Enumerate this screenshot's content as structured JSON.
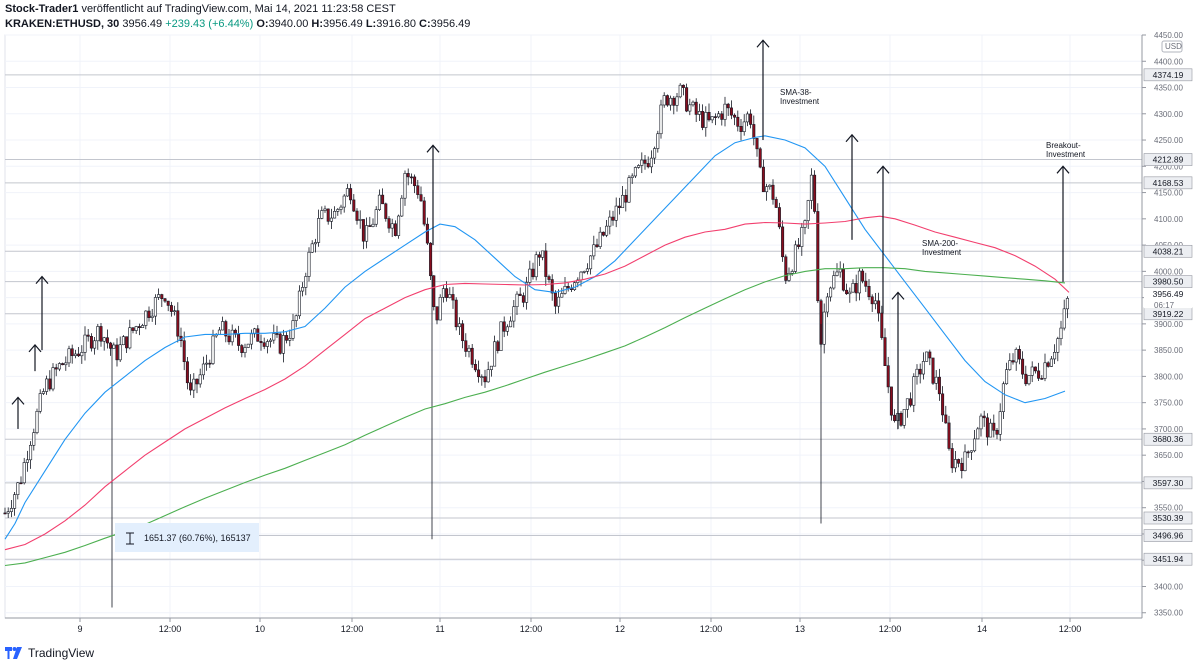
{
  "header": {
    "author": "Stock-Trader1",
    "published_text": "veröffentlicht auf TradingView.com, Mai 14, 2021 11:23:58 CEST",
    "symbol": "KRAKEN:ETHUSD, 30",
    "last": "3956.49",
    "change": "+239.43 (+6.44%)",
    "open_label": "O:",
    "open": "3940.00",
    "high_label": "H:",
    "high": "3956.49",
    "low_label": "L:",
    "low": "3916.80",
    "close_label": "C:",
    "close": "3956.49"
  },
  "footer": {
    "brand": "TradingView"
  },
  "chart_data": {
    "type": "candlestick",
    "currency_label": "USD",
    "ylim": [
      3340,
      4450
    ],
    "x_ticks": [
      "9",
      "12:00",
      "10",
      "12:00",
      "11",
      "12:00",
      "12",
      "12:00",
      "13",
      "12:00",
      "14",
      "12:00"
    ],
    "y_ticks": [
      3350,
      3400,
      3450,
      3500,
      3550,
      3600,
      3650,
      3700,
      3750,
      3800,
      3850,
      3900,
      3950,
      4000,
      4050,
      4100,
      4150,
      4200,
      4250,
      4300,
      4350,
      4400,
      4450
    ],
    "price_levels": [
      4374.19,
      4212.89,
      4168.53,
      4038.21,
      3980.5,
      3919.22,
      3680.36,
      3597.3,
      3530.39,
      3496.96,
      3451.94
    ],
    "last_price": {
      "value": "3956.49",
      "countdown": "06:17"
    },
    "annotations": [
      {
        "text": "SMA-38-",
        "text2": "Investment"
      },
      {
        "text": "SMA-200-",
        "text2": "Investment"
      },
      {
        "text": "Breakout-",
        "text2": "Investment"
      }
    ],
    "measure_label": "1651.37 (60.76%), 165137",
    "series": [
      {
        "name": "",
        "color": "#2196f3",
        "values": [
          [
            0,
            3490
          ],
          [
            10,
            3520
          ],
          [
            20,
            3560
          ],
          [
            40,
            3620
          ],
          [
            60,
            3680
          ],
          [
            80,
            3730
          ],
          [
            100,
            3770
          ],
          [
            120,
            3800
          ],
          [
            140,
            3830
          ],
          [
            160,
            3855
          ],
          [
            180,
            3875
          ],
          [
            200,
            3880
          ],
          [
            220,
            3880
          ],
          [
            240,
            3882
          ],
          [
            260,
            3882
          ],
          [
            280,
            3885
          ],
          [
            300,
            3895
          ],
          [
            320,
            3930
          ],
          [
            340,
            3970
          ],
          [
            360,
            4000
          ],
          [
            380,
            4025
          ],
          [
            400,
            4050
          ],
          [
            420,
            4075
          ],
          [
            435,
            4090
          ],
          [
            450,
            4085
          ],
          [
            470,
            4060
          ],
          [
            490,
            4025
          ],
          [
            510,
            3990
          ],
          [
            530,
            3965
          ],
          [
            550,
            3960
          ],
          [
            570,
            3970
          ],
          [
            590,
            3990
          ],
          [
            610,
            4020
          ],
          [
            630,
            4060
          ],
          [
            650,
            4100
          ],
          [
            670,
            4140
          ],
          [
            690,
            4180
          ],
          [
            710,
            4220
          ],
          [
            730,
            4245
          ],
          [
            750,
            4255
          ],
          [
            760,
            4258
          ],
          [
            780,
            4250
          ],
          [
            800,
            4235
          ],
          [
            820,
            4200
          ],
          [
            840,
            4140
          ],
          [
            860,
            4080
          ],
          [
            880,
            4030
          ],
          [
            900,
            3980
          ],
          [
            920,
            3930
          ],
          [
            940,
            3880
          ],
          [
            960,
            3830
          ],
          [
            980,
            3790
          ],
          [
            1000,
            3765
          ],
          [
            1020,
            3750
          ],
          [
            1040,
            3758
          ],
          [
            1060,
            3772
          ]
        ]
      },
      {
        "name": "",
        "color": "#f23f6e",
        "values": [
          [
            0,
            3470
          ],
          [
            20,
            3480
          ],
          [
            40,
            3500
          ],
          [
            60,
            3525
          ],
          [
            80,
            3555
          ],
          [
            100,
            3590
          ],
          [
            120,
            3620
          ],
          [
            140,
            3650
          ],
          [
            160,
            3675
          ],
          [
            180,
            3700
          ],
          [
            200,
            3720
          ],
          [
            220,
            3740
          ],
          [
            240,
            3758
          ],
          [
            260,
            3775
          ],
          [
            280,
            3795
          ],
          [
            300,
            3820
          ],
          [
            320,
            3850
          ],
          [
            340,
            3880
          ],
          [
            360,
            3910
          ],
          [
            380,
            3930
          ],
          [
            400,
            3950
          ],
          [
            420,
            3965
          ],
          [
            440,
            3975
          ],
          [
            460,
            3977
          ],
          [
            480,
            3976
          ],
          [
            500,
            3975
          ],
          [
            520,
            3974
          ],
          [
            540,
            3975
          ],
          [
            560,
            3978
          ],
          [
            580,
            3985
          ],
          [
            600,
            3995
          ],
          [
            620,
            4010
          ],
          [
            640,
            4030
          ],
          [
            660,
            4050
          ],
          [
            680,
            4065
          ],
          [
            700,
            4075
          ],
          [
            720,
            4080
          ],
          [
            740,
            4090
          ],
          [
            760,
            4093
          ],
          [
            780,
            4092
          ],
          [
            800,
            4090
          ],
          [
            820,
            4092
          ],
          [
            840,
            4095
          ],
          [
            860,
            4102
          ],
          [
            875,
            4105
          ],
          [
            890,
            4100
          ],
          [
            910,
            4088
          ],
          [
            930,
            4075
          ],
          [
            950,
            4065
          ],
          [
            970,
            4055
          ],
          [
            990,
            4045
          ],
          [
            1010,
            4030
          ],
          [
            1030,
            4010
          ],
          [
            1050,
            3985
          ],
          [
            1064,
            3960
          ]
        ]
      },
      {
        "name": "",
        "color": "#4caf50",
        "values": [
          [
            0,
            3440
          ],
          [
            20,
            3445
          ],
          [
            40,
            3455
          ],
          [
            60,
            3465
          ],
          [
            80,
            3478
          ],
          [
            100,
            3492
          ],
          [
            120,
            3505
          ],
          [
            140,
            3518
          ],
          [
            160,
            3535
          ],
          [
            180,
            3552
          ],
          [
            200,
            3568
          ],
          [
            220,
            3583
          ],
          [
            240,
            3598
          ],
          [
            260,
            3612
          ],
          [
            280,
            3625
          ],
          [
            300,
            3640
          ],
          [
            320,
            3655
          ],
          [
            340,
            3670
          ],
          [
            360,
            3688
          ],
          [
            380,
            3705
          ],
          [
            400,
            3722
          ],
          [
            420,
            3738
          ],
          [
            440,
            3748
          ],
          [
            460,
            3760
          ],
          [
            480,
            3770
          ],
          [
            500,
            3782
          ],
          [
            520,
            3795
          ],
          [
            540,
            3808
          ],
          [
            560,
            3820
          ],
          [
            580,
            3832
          ],
          [
            600,
            3845
          ],
          [
            620,
            3858
          ],
          [
            640,
            3875
          ],
          [
            660,
            3893
          ],
          [
            680,
            3912
          ],
          [
            700,
            3930
          ],
          [
            720,
            3948
          ],
          [
            740,
            3965
          ],
          [
            760,
            3980
          ],
          [
            780,
            3992
          ],
          [
            800,
            4000
          ],
          [
            820,
            4005
          ],
          [
            840,
            4005
          ],
          [
            860,
            4007
          ],
          [
            880,
            4007
          ],
          [
            900,
            4005
          ],
          [
            920,
            4000
          ],
          [
            940,
            3997
          ],
          [
            960,
            3994
          ],
          [
            980,
            3991
          ],
          [
            1000,
            3988
          ],
          [
            1020,
            3985
          ],
          [
            1040,
            3982
          ],
          [
            1060,
            3978
          ]
        ]
      }
    ]
  }
}
